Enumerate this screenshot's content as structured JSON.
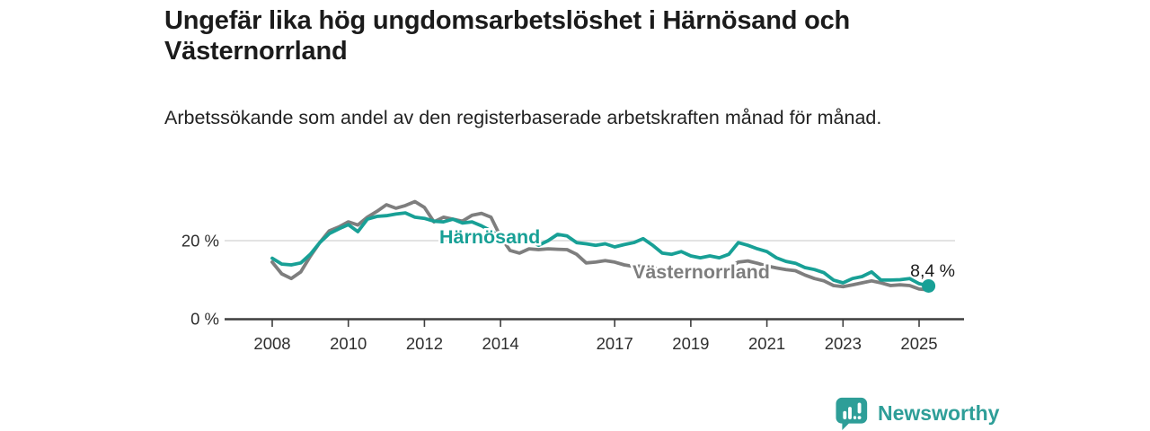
{
  "header": {
    "title": "Ungefär lika hög ungdomsarbetslöshet i Härnösand och Västernorrland",
    "subtitle": "Arbetssökande som andel av den registerbaserade arbetskraften månad för månad."
  },
  "chart_data": {
    "type": "line",
    "title": "Ungefär lika hög ungdomsarbetslöshet i Härnösand och Västernorrland",
    "subtitle": "Arbetssökande som andel av den registerbaserade arbetskraften månad för månad.",
    "unit": "%",
    "xlabel": "",
    "ylabel": "",
    "xlim": [
      2007.75,
      2025.6
    ],
    "ylim": [
      0,
      33
    ],
    "grid": "single-horizontal-gridline-at-20",
    "legend_position": "inline-labels-on-lines",
    "x_ticks": [
      2008,
      2010,
      2012,
      2014,
      2017,
      2019,
      2021,
      2023,
      2025
    ],
    "y_ticks": [
      {
        "value": 0,
        "label": "0 %"
      },
      {
        "value": 20,
        "label": "20 %"
      }
    ],
    "x": [
      2008,
      2008.25,
      2008.5,
      2008.75,
      2009,
      2009.25,
      2009.5,
      2009.75,
      2010,
      2010.25,
      2010.5,
      2010.75,
      2011,
      2011.25,
      2011.5,
      2011.75,
      2012,
      2012.25,
      2012.5,
      2012.75,
      2013,
      2013.25,
      2013.5,
      2013.75,
      2014,
      2014.25,
      2014.5,
      2014.75,
      2015,
      2015.25,
      2015.5,
      2015.75,
      2016,
      2016.25,
      2016.5,
      2016.75,
      2017,
      2017.25,
      2017.5,
      2017.75,
      2018,
      2018.25,
      2018.5,
      2018.75,
      2019,
      2019.25,
      2019.5,
      2019.75,
      2020,
      2020.25,
      2020.5,
      2020.75,
      2021,
      2021.25,
      2021.5,
      2021.75,
      2022,
      2022.25,
      2022.5,
      2022.75,
      2023,
      2023.25,
      2023.5,
      2023.75,
      2024,
      2024.25,
      2024.5,
      2024.75,
      2025,
      2025.25
    ],
    "series": [
      {
        "name": "Härnösand",
        "color": "#18a096",
        "values": [
          15.5,
          14.0,
          13.8,
          14.3,
          16.5,
          19.5,
          21.8,
          23.0,
          24.1,
          22.3,
          25.5,
          26.2,
          26.4,
          26.8,
          27.1,
          26.0,
          25.7,
          25.0,
          24.8,
          25.5,
          24.5,
          24.8,
          23.8,
          22.5,
          21.0,
          20.4,
          19.2,
          20.0,
          18.8,
          20.0,
          21.6,
          21.2,
          19.5,
          19.2,
          18.8,
          19.2,
          18.4,
          19.0,
          19.5,
          20.5,
          18.8,
          16.8,
          16.5,
          17.2,
          16.1,
          15.6,
          16.1,
          15.6,
          16.5,
          19.5,
          18.8,
          17.9,
          17.2,
          15.6,
          14.7,
          14.2,
          13.1,
          12.6,
          11.8,
          9.9,
          9.2,
          10.3,
          10.8,
          12.0,
          9.9,
          9.9,
          10.0,
          10.3,
          9.0,
          8.4
        ]
      },
      {
        "name": "Västernorrland",
        "color": "#7e7e7e",
        "values": [
          14.5,
          11.5,
          10.3,
          12.0,
          16.0,
          19.5,
          22.5,
          23.5,
          24.8,
          24.0,
          26.0,
          27.5,
          29.2,
          28.3,
          29.0,
          30.0,
          28.5,
          24.8,
          26.0,
          25.5,
          25.0,
          26.5,
          27.0,
          26.0,
          21.0,
          17.5,
          16.8,
          17.9,
          17.7,
          17.9,
          17.8,
          17.7,
          16.5,
          14.3,
          14.5,
          14.9,
          14.5,
          13.8,
          13.4,
          13.5,
          13.0,
          12.5,
          12.3,
          12.5,
          12.2,
          12.0,
          12.0,
          12.2,
          13.0,
          14.5,
          14.8,
          14.2,
          13.5,
          13.0,
          12.6,
          12.3,
          11.2,
          10.3,
          9.7,
          8.5,
          8.2,
          8.7,
          9.2,
          9.7,
          9.2,
          8.5,
          8.7,
          8.5,
          7.6,
          7.4
        ]
      }
    ],
    "end_label": "8,4 %",
    "end_value": 8.4
  },
  "colors": {
    "accent_teal": "#18a096",
    "series_gray": "#7e7e7e",
    "axis": "#3e3e3e",
    "gridline": "#dadada",
    "text_dark": "#1b1b1b",
    "brand_teal": "#2e9e98"
  },
  "footer": {
    "brand": "Newsworthy",
    "logo_icon": "bar-chart-speech-bubble-icon"
  }
}
